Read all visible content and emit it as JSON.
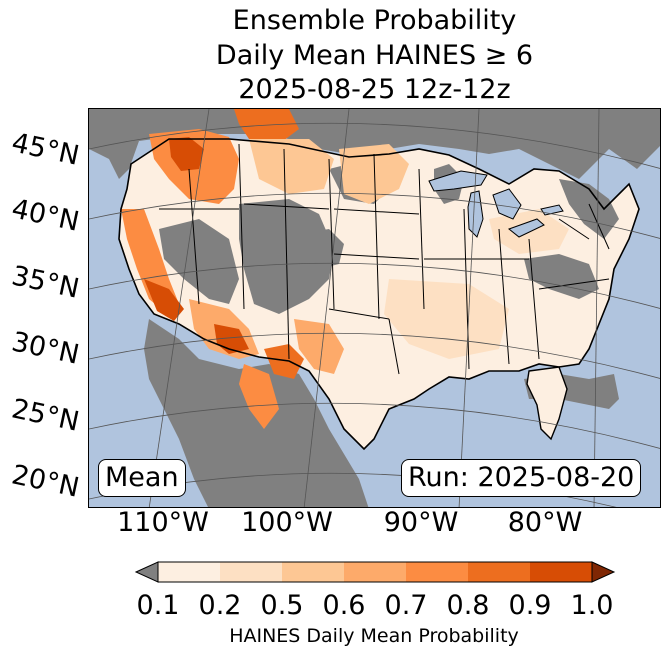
{
  "title": {
    "line1": "Ensemble Probability",
    "line2": "Daily Mean HAINES ≥ 6",
    "line3": "2025-08-25 12z-12z"
  },
  "latitude_labels": [
    "45°N",
    "40°N",
    "35°N",
    "30°N",
    "25°N",
    "20°N"
  ],
  "longitude_labels": [
    "110°W",
    "100°W",
    "90°W",
    "80°W"
  ],
  "stat_label": "Mean",
  "run_label": "Run: 2025-08-20",
  "colorbar": {
    "label": "HAINES Daily Mean Probability",
    "ticks": [
      "0.1",
      "0.2",
      "0.5",
      "0.6",
      "0.7",
      "0.8",
      "0.9",
      "1.0"
    ],
    "colors": [
      "#fdefe1",
      "#fde0c3",
      "#fdc794",
      "#fdaa6a",
      "#fc8c42",
      "#ed6e1f",
      "#d74d05"
    ],
    "under_color": "#808080",
    "over_color": "#7f2704"
  },
  "colors": {
    "ocean": "#b0c4de",
    "land_below_threshold": "#808080",
    "border": "#000000",
    "lakes": "#b0c4de"
  }
}
